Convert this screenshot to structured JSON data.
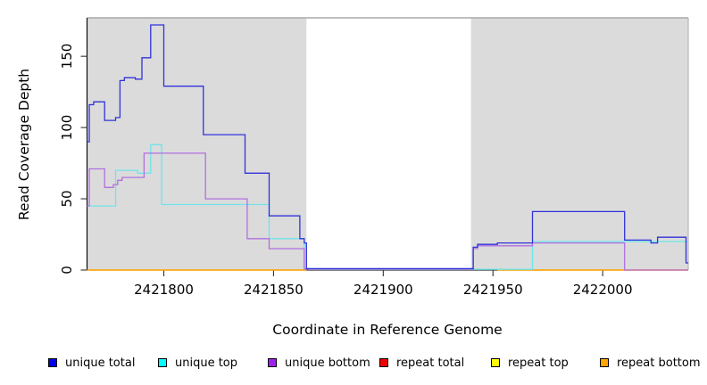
{
  "figure": {
    "y_axis_label": "Read Coverage Depth",
    "x_axis_label": "Coordinate in Reference Genome"
  },
  "legend": {
    "items": [
      {
        "label": "unique total",
        "color": "#0000EE"
      },
      {
        "label": "unique top",
        "color": "#00FFFF"
      },
      {
        "label": "unique bottom",
        "color": "#A020F0"
      },
      {
        "label": "repeat total",
        "color": "#EE0000"
      },
      {
        "label": "repeat top",
        "color": "#FFFF00"
      },
      {
        "label": "repeat bottom",
        "color": "#FFA500"
      }
    ]
  },
  "chart_data": {
    "type": "line",
    "subtype": "step-after read-coverage plot",
    "title": "",
    "xlabel": "Coordinate in Reference Genome",
    "ylabel": "Read Coverage Depth",
    "grid": false,
    "x_axis": {
      "range": [
        2421765,
        2422039
      ],
      "ticks": [
        {
          "v": 2421800,
          "label": "2421800"
        },
        {
          "v": 2421850,
          "label": "2421850"
        },
        {
          "v": 2421900,
          "label": "2421900"
        },
        {
          "v": 2421950,
          "label": "2421950"
        },
        {
          "v": 2422000,
          "label": "2422000"
        }
      ]
    },
    "y_axis": {
      "range": [
        0,
        177
      ],
      "ticks": [
        {
          "v": 0,
          "label": "0"
        },
        {
          "v": 50,
          "label": "50"
        },
        {
          "v": 100,
          "label": "100"
        },
        {
          "v": 150,
          "label": "150"
        }
      ]
    },
    "shaded_regions": {
      "color": "#DBDBDB",
      "border_color": "#A8A8A8",
      "coords": [
        [
          2421765,
          2421865
        ],
        [
          2421940,
          2422039
        ]
      ]
    },
    "draw_order": [
      "repeat total",
      "repeat top",
      "repeat bottom",
      "unique top",
      "unique bottom",
      "unique total"
    ],
    "series": [
      {
        "name": "unique total",
        "line_color": "#3032D9",
        "segments": [
          [
            [
              2421765,
              90
            ],
            [
              2421766,
              116
            ],
            [
              2421768,
              118
            ],
            [
              2421773,
              105
            ],
            [
              2421778,
              107
            ],
            [
              2421780,
              133
            ],
            [
              2421782,
              135
            ],
            [
              2421787,
              134
            ],
            [
              2421790,
              149
            ],
            [
              2421794,
              172
            ],
            [
              2421800,
              129
            ],
            [
              2421818,
              95
            ],
            [
              2421837,
              68
            ],
            [
              2421848,
              38
            ],
            [
              2421862,
              22
            ],
            [
              2421864,
              19
            ],
            [
              2421865,
              1
            ],
            [
              2421941,
              16
            ],
            [
              2421943,
              18
            ],
            [
              2421952,
              19
            ],
            [
              2421968,
              41
            ],
            [
              2422010,
              21
            ],
            [
              2422022,
              19
            ],
            [
              2422025,
              23
            ],
            [
              2422038,
              5
            ],
            [
              2422039,
              5
            ]
          ]
        ]
      },
      {
        "name": "unique top",
        "line_color": "#6FE4E9",
        "segments": [
          [
            [
              2421765,
              45
            ],
            [
              2421778,
              70
            ],
            [
              2421788,
              68
            ],
            [
              2421794,
              88
            ],
            [
              2421799,
              46
            ],
            [
              2421848,
              22
            ],
            [
              2421864,
              1
            ],
            [
              2421866,
              0.5
            ],
            [
              2421968,
              20
            ],
            [
              2422039,
              20
            ]
          ]
        ]
      },
      {
        "name": "unique bottom",
        "line_color": "#B16FE0",
        "segments": [
          [
            [
              2421765,
              45
            ],
            [
              2421766,
              71
            ],
            [
              2421773,
              58
            ],
            [
              2421777,
              60
            ],
            [
              2421779,
              63
            ],
            [
              2421781,
              65
            ],
            [
              2421791,
              82
            ],
            [
              2421819,
              50
            ],
            [
              2421838,
              22
            ],
            [
              2421848,
              15
            ],
            [
              2421864,
              0.6
            ],
            [
              2421941,
              15
            ],
            [
              2421943,
              17
            ],
            [
              2421968,
              19
            ],
            [
              2422010,
              0
            ],
            [
              2422039,
              0
            ]
          ]
        ]
      },
      {
        "name": "repeat total",
        "line_color": "#EE0000",
        "segments": [
          [
            [
              2421765,
              0
            ],
            [
              2421865,
              0
            ]
          ],
          [
            [
              2421952,
              0
            ],
            [
              2422039,
              0
            ]
          ]
        ]
      },
      {
        "name": "repeat top",
        "line_color": "#FFFF00",
        "segments": [
          [
            [
              2421765,
              0
            ],
            [
              2421865,
              0
            ]
          ],
          [
            [
              2421952,
              0
            ],
            [
              2422039,
              0
            ]
          ]
        ]
      },
      {
        "name": "repeat bottom",
        "line_color": "#FFA500",
        "segments": [
          [
            [
              2421765,
              0
            ],
            [
              2421865,
              0
            ]
          ],
          [
            [
              2421952,
              0
            ],
            [
              2422039,
              0
            ]
          ]
        ]
      }
    ]
  }
}
